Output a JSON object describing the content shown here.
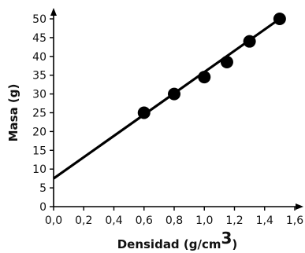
{
  "chart_data": {
    "type": "scatter",
    "title": "",
    "xlabel": "Densidad (g/cm",
    "xlabel_superscript": "3",
    "xlabel_close": ")",
    "ylabel": "Masa (g)",
    "xlim": [
      0,
      1.6
    ],
    "ylim": [
      0,
      50
    ],
    "x_ticks": [
      0.0,
      0.2,
      0.4,
      0.6,
      0.8,
      1.0,
      1.2,
      1.4,
      1.6
    ],
    "x_tick_labels": [
      "0,0",
      "0,2",
      "0,4",
      "0,6",
      "0,8",
      "1,0",
      "1,2",
      "1,4",
      "1,6"
    ],
    "y_ticks": [
      0,
      5,
      10,
      15,
      20,
      25,
      30,
      35,
      40,
      45,
      50
    ],
    "y_tick_labels": [
      "0",
      "5",
      "10",
      "15",
      "20",
      "25",
      "30",
      "35",
      "40",
      "45",
      "50"
    ],
    "grid": false,
    "points": [
      {
        "x": 0.6,
        "y": 25
      },
      {
        "x": 0.8,
        "y": 30
      },
      {
        "x": 1.0,
        "y": 34.5
      },
      {
        "x": 1.15,
        "y": 38.5
      },
      {
        "x": 1.3,
        "y": 44
      },
      {
        "x": 1.5,
        "y": 50
      }
    ],
    "trendline": {
      "x": [
        0.0,
        1.5
      ],
      "y": [
        7.5,
        50
      ]
    },
    "colors": {
      "marker": "#000000",
      "line": "#000000",
      "axis": "#000000"
    }
  }
}
